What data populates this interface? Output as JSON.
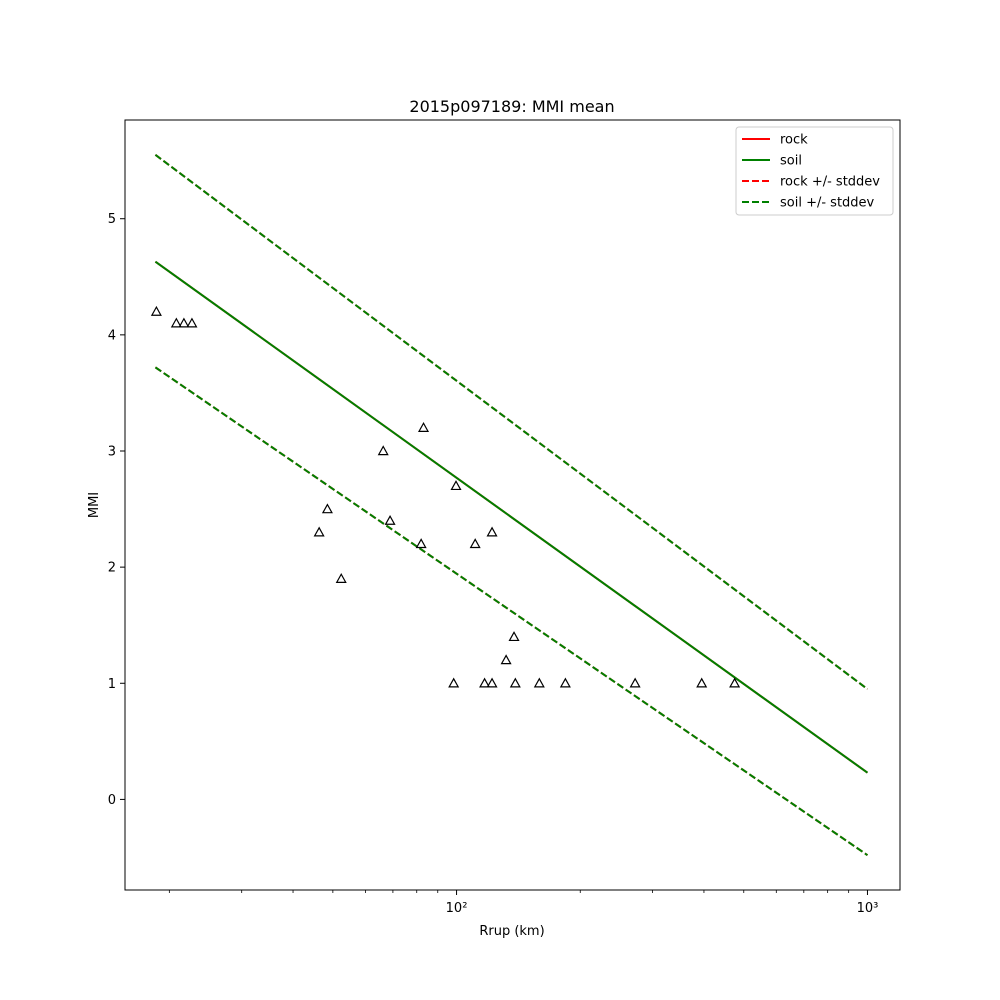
{
  "chart_data": {
    "type": "scatter",
    "title": "2015p097189: MMI mean",
    "xlabel": "Rrup (km)",
    "ylabel": "MMI",
    "xscale": "log",
    "xlim": [
      15.6,
      1200
    ],
    "ylim": [
      -0.78,
      5.85
    ],
    "xticks": [
      {
        "value": 100,
        "label": "10²"
      },
      {
        "value": 1000,
        "label": "10³"
      }
    ],
    "yticks": [
      0,
      1,
      2,
      3,
      4,
      5
    ],
    "grid": false,
    "legend_position": "upper-right",
    "legend": [
      {
        "label": "rock",
        "color": "#ff0000",
        "style": "solid"
      },
      {
        "label": "soil",
        "color": "#008000",
        "style": "solid"
      },
      {
        "label": "rock +/- stddev",
        "color": "#ff0000",
        "style": "dashed"
      },
      {
        "label": "soil +/- stddev",
        "color": "#008000",
        "style": "dashed"
      }
    ],
    "lines": [
      {
        "name": "rock",
        "style": "solid",
        "color": "#ff0000",
        "x": [
          18.5,
          1000
        ],
        "y": [
          4.63,
          0.23
        ]
      },
      {
        "name": "soil",
        "style": "solid",
        "color": "#008000",
        "x": [
          18.5,
          1000
        ],
        "y": [
          4.63,
          0.23
        ]
      },
      {
        "name": "rock +/- stddev",
        "style": "dashed",
        "color": "#ff0000",
        "x": [
          18.5,
          1000
        ],
        "y": [
          5.55,
          0.95
        ]
      },
      {
        "name": "rock +/- stddev",
        "style": "dashed",
        "color": "#ff0000",
        "x": [
          18.5,
          1000
        ],
        "y": [
          3.72,
          -0.48
        ]
      },
      {
        "name": "soil +/- stddev",
        "style": "dashed",
        "color": "#008000",
        "x": [
          18.5,
          1000
        ],
        "y": [
          5.55,
          0.95
        ]
      },
      {
        "name": "soil +/- stddev",
        "style": "dashed",
        "color": "#008000",
        "x": [
          18.5,
          1000
        ],
        "y": [
          3.72,
          -0.48
        ]
      }
    ],
    "points": {
      "marker": "triangle",
      "color": "#000000",
      "x": [
        18.6,
        20.8,
        21.7,
        22.7,
        46.3,
        48.5,
        52.4,
        66.3,
        68.9,
        82.0,
        83.1,
        98.4,
        99.7,
        111,
        117,
        122,
        122,
        132,
        138,
        139,
        159,
        184,
        272,
        395,
        475
      ],
      "y": [
        4.2,
        4.1,
        4.1,
        4.1,
        2.3,
        2.5,
        1.9,
        3.0,
        2.4,
        2.2,
        3.2,
        1.0,
        2.7,
        2.2,
        1.0,
        1.0,
        2.3,
        1.2,
        1.4,
        1.0,
        1.0,
        1.0,
        1.0,
        1.0,
        1.0
      ]
    }
  }
}
